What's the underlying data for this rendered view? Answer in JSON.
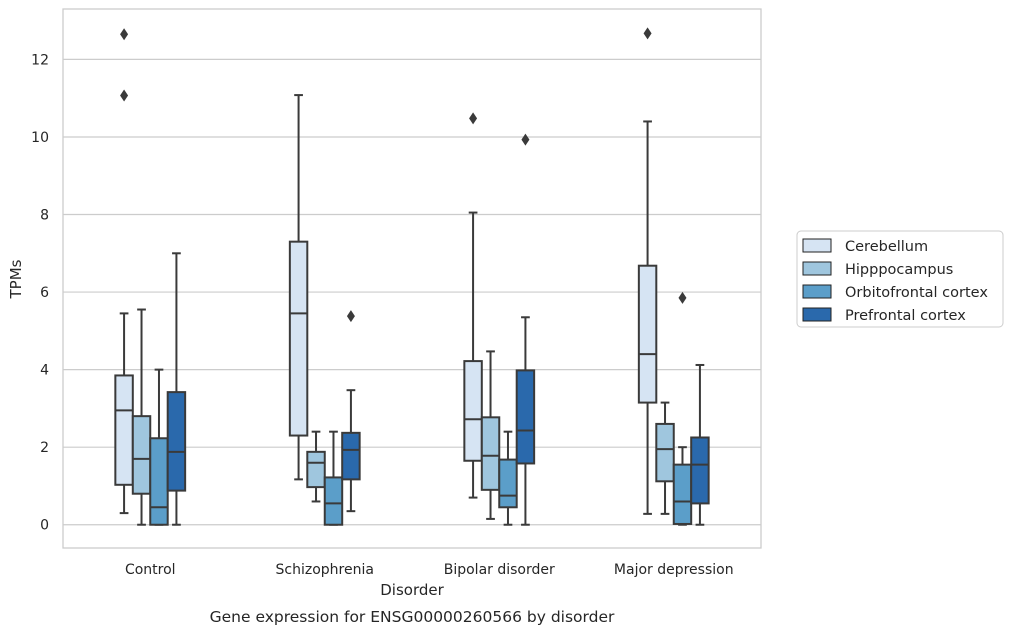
{
  "caption": "Gene expression for ENSG00000260566 by disorder",
  "chart_data": {
    "type": "box",
    "xlabel": "Disorder",
    "ylabel": "TPMs",
    "ylim": [
      -0.6,
      13.3
    ],
    "yticks": [
      0,
      2,
      4,
      6,
      8,
      10,
      12
    ],
    "grid": "horizontal",
    "legend_position": "right",
    "categories": [
      "Control",
      "Schizophrenia",
      "Bipolar disorder",
      "Major depression"
    ],
    "series": [
      {
        "name": "Cerebellum",
        "color": "#d6e4f3",
        "boxes": [
          {
            "whislo": 0.3,
            "q1": 1.03,
            "med": 2.95,
            "q3": 3.85,
            "whishi": 5.45,
            "fliers": [
              11.07,
              12.65
            ]
          },
          {
            "whislo": 1.17,
            "q1": 2.3,
            "med": 5.45,
            "q3": 7.3,
            "whishi": 11.08,
            "fliers": []
          },
          {
            "whislo": 0.7,
            "q1": 1.65,
            "med": 2.72,
            "q3": 4.22,
            "whishi": 8.05,
            "fliers": [
              10.48
            ]
          },
          {
            "whislo": 0.28,
            "q1": 3.15,
            "med": 4.4,
            "q3": 6.68,
            "whishi": 10.4,
            "fliers": [
              12.67
            ]
          }
        ]
      },
      {
        "name": "Hipppocampus",
        "color": "#9fc6de",
        "boxes": [
          {
            "whislo": 0.0,
            "q1": 0.8,
            "med": 1.7,
            "q3": 2.8,
            "whishi": 5.55,
            "fliers": []
          },
          {
            "whislo": 0.6,
            "q1": 0.97,
            "med": 1.6,
            "q3": 1.88,
            "whishi": 2.4,
            "fliers": []
          },
          {
            "whislo": 0.15,
            "q1": 0.9,
            "med": 1.78,
            "q3": 2.77,
            "whishi": 4.47,
            "fliers": []
          },
          {
            "whislo": 0.28,
            "q1": 1.12,
            "med": 1.95,
            "q3": 2.6,
            "whishi": 3.15,
            "fliers": []
          }
        ]
      },
      {
        "name": "Orbitofrontal cortex",
        "color": "#5b9ec9",
        "boxes": [
          {
            "whislo": 0.0,
            "q1": 0.0,
            "med": 0.45,
            "q3": 2.23,
            "whishi": 4.0,
            "fliers": []
          },
          {
            "whislo": 0.0,
            "q1": 0.0,
            "med": 0.55,
            "q3": 1.22,
            "whishi": 2.4,
            "fliers": []
          },
          {
            "whislo": 0.0,
            "q1": 0.45,
            "med": 0.75,
            "q3": 1.68,
            "whishi": 2.4,
            "fliers": []
          },
          {
            "whislo": 0.0,
            "q1": 0.02,
            "med": 0.6,
            "q3": 1.55,
            "whishi": 2.0,
            "fliers": [
              5.85
            ]
          }
        ]
      },
      {
        "name": "Prefrontal cortex",
        "color": "#2a69ac",
        "boxes": [
          {
            "whislo": 0.0,
            "q1": 0.88,
            "med": 1.88,
            "q3": 3.42,
            "whishi": 7.0,
            "fliers": []
          },
          {
            "whislo": 0.35,
            "q1": 1.17,
            "med": 1.93,
            "q3": 2.37,
            "whishi": 3.47,
            "fliers": [
              5.38
            ]
          },
          {
            "whislo": 0.0,
            "q1": 1.58,
            "med": 2.43,
            "q3": 3.98,
            "whishi": 5.35,
            "fliers": [
              9.93
            ]
          },
          {
            "whislo": 0.0,
            "q1": 0.55,
            "med": 1.55,
            "q3": 2.25,
            "whishi": 4.12,
            "fliers": []
          }
        ]
      }
    ]
  }
}
